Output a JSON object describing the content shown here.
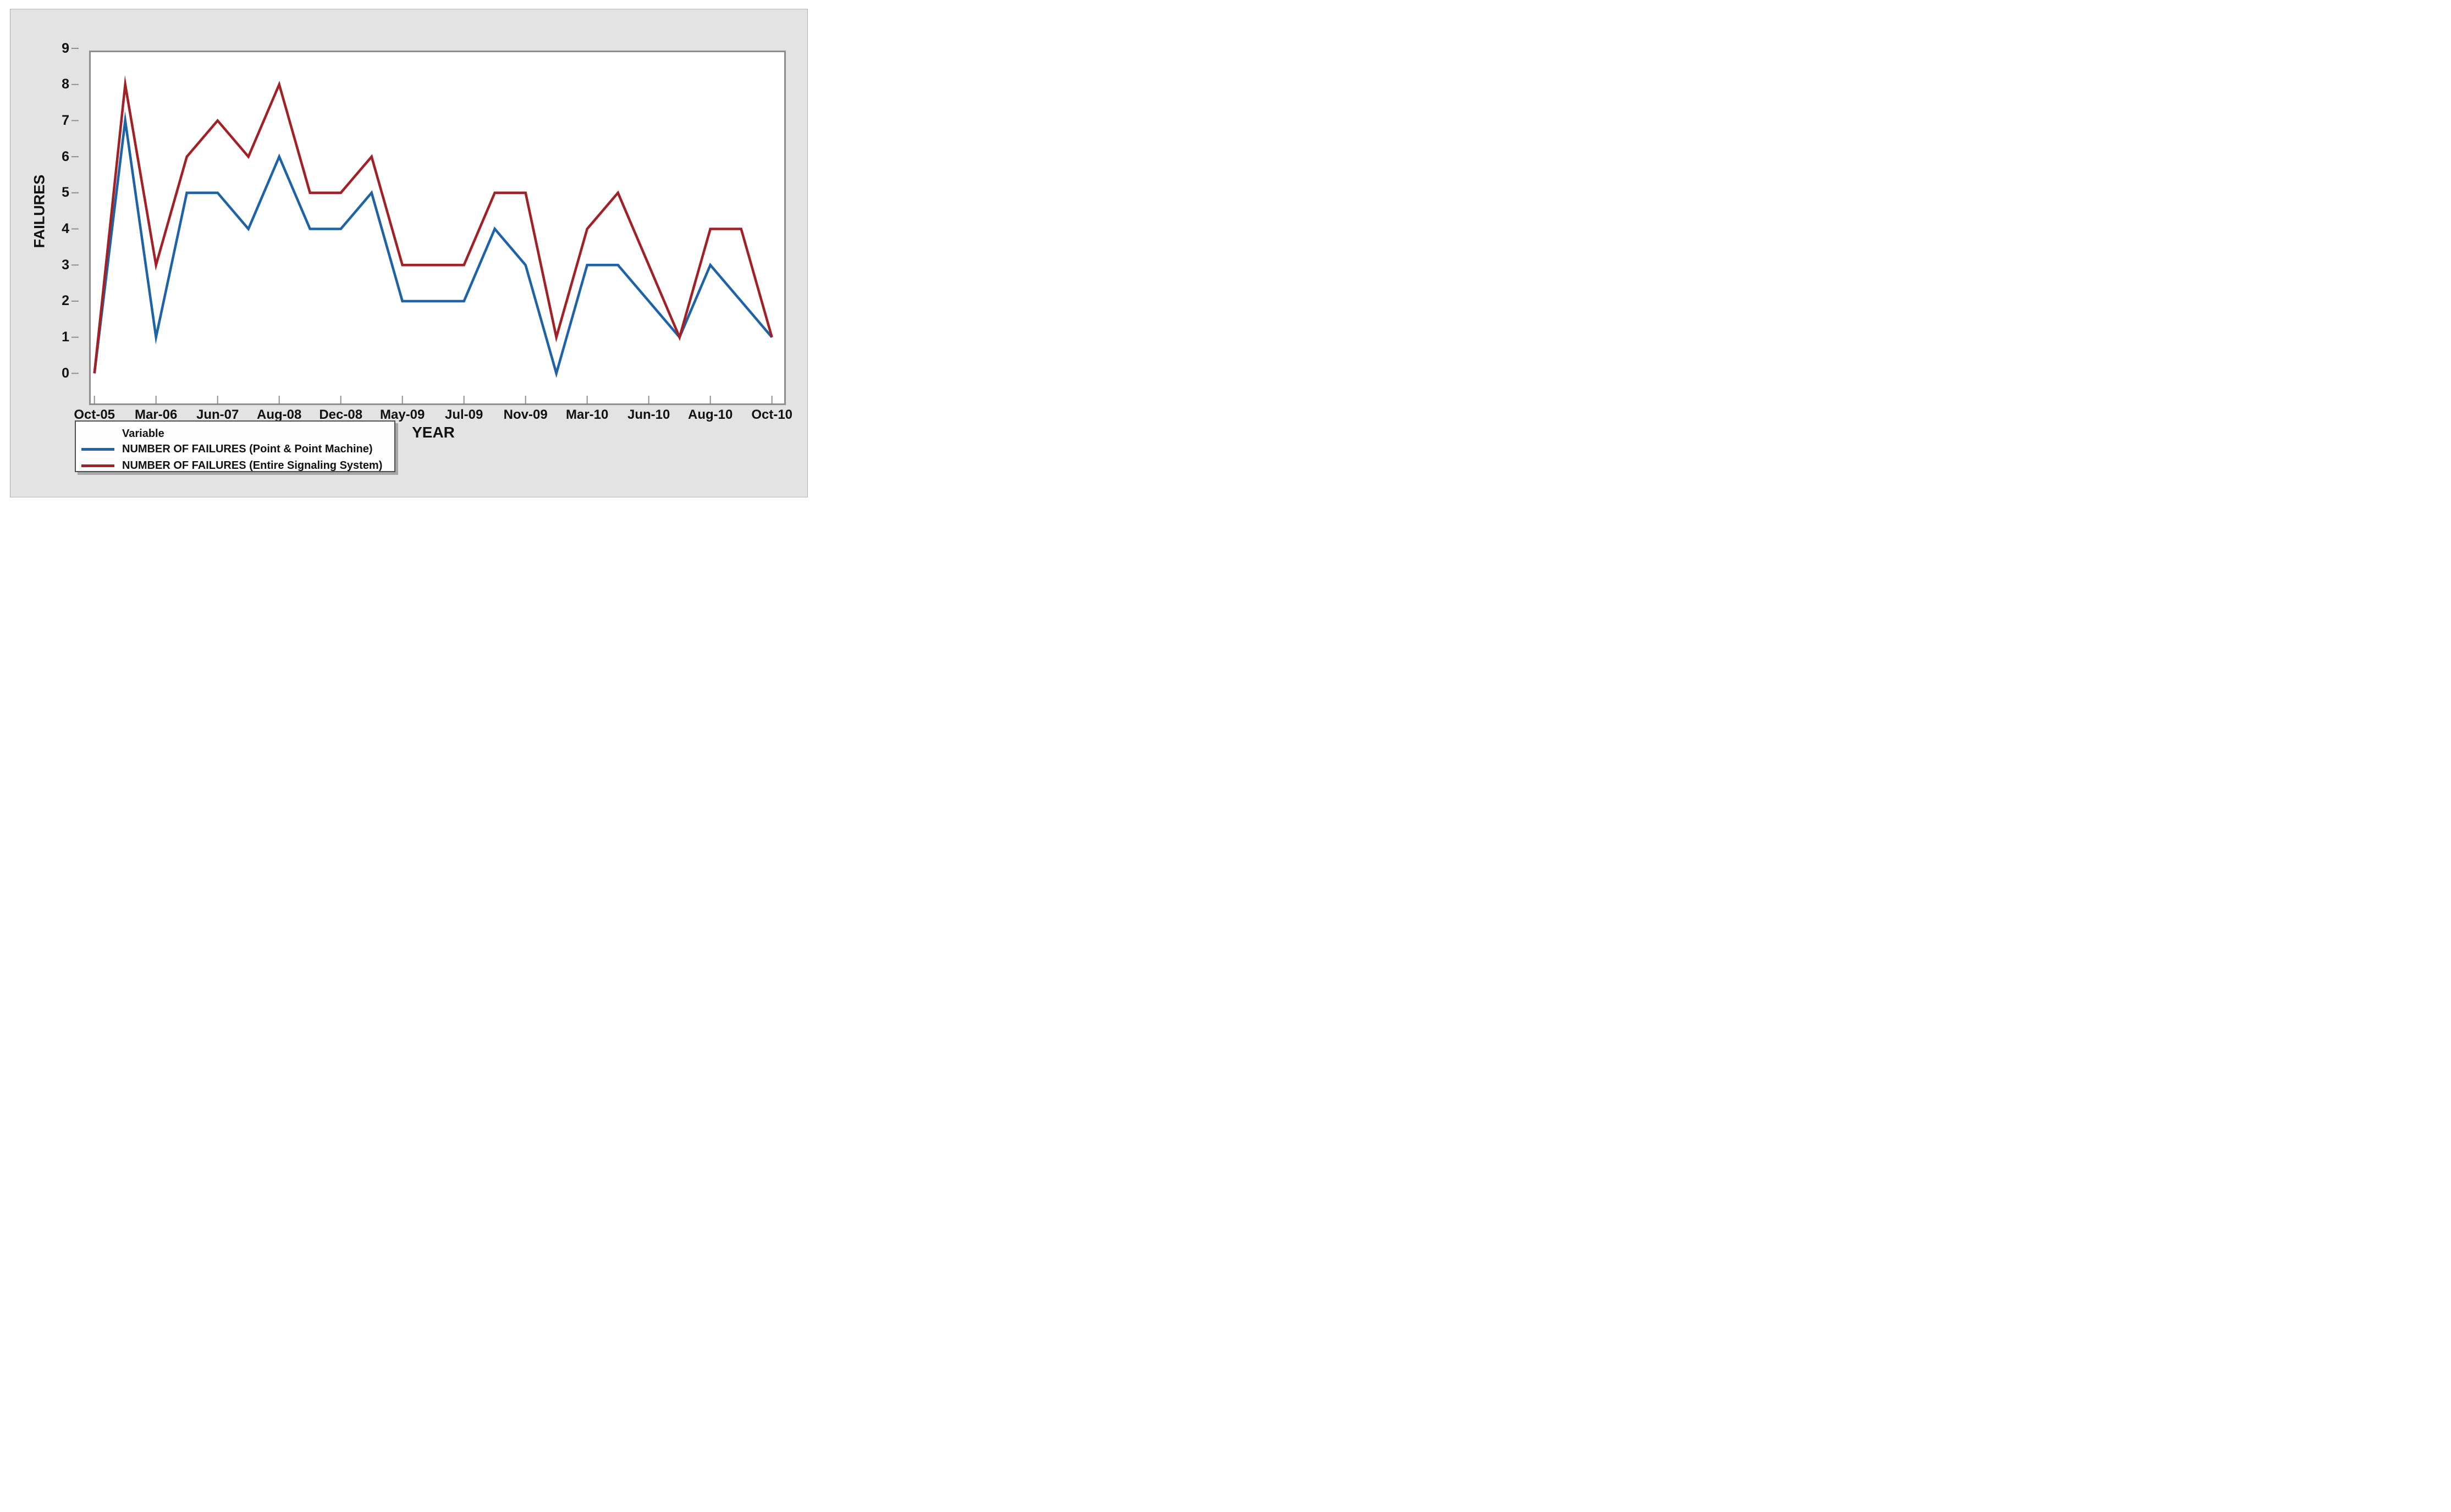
{
  "window": {
    "background": "#ffffff",
    "figure_background": "#e3e3e3"
  },
  "chart_data": {
    "type": "line",
    "title": "",
    "xlabel": "YEAR",
    "ylabel": "FAILURES",
    "x_tick_labels": [
      "Oct-05",
      "Mar-06",
      "Jun-07",
      "Aug-08",
      "Dec-08",
      "May-09",
      "Jul-09",
      "Nov-09",
      "Mar-10",
      "Jun-10",
      "Aug-10",
      "Oct-10"
    ],
    "points_per_label_interval": 2,
    "y_ticks": [
      0,
      1,
      2,
      3,
      4,
      5,
      6,
      7,
      8,
      9
    ],
    "ylim": [
      0,
      9
    ],
    "grid": "off",
    "legend": {
      "header": "Variable",
      "position": "bottom-left"
    },
    "series": [
      {
        "name": "NUMBER OF FAILURES (Point & Point Machine)",
        "color": "#1e62a8",
        "values": [
          0,
          7,
          1,
          5,
          5,
          4,
          6,
          4,
          4,
          5,
          2,
          2,
          2,
          4,
          3,
          0,
          3,
          3,
          2,
          1,
          3,
          2,
          1
        ]
      },
      {
        "name": "NUMBER OF FAILURES (Entire Signaling System)",
        "color": "#a02226",
        "values": [
          0,
          8,
          3,
          6,
          7,
          6,
          8,
          5,
          5,
          6,
          3,
          3,
          3,
          5,
          5,
          1,
          4,
          5,
          3,
          1,
          4,
          4,
          1
        ]
      }
    ],
    "axis_color": "#8e8e8e",
    "tick_color": "#8e8e8e"
  }
}
